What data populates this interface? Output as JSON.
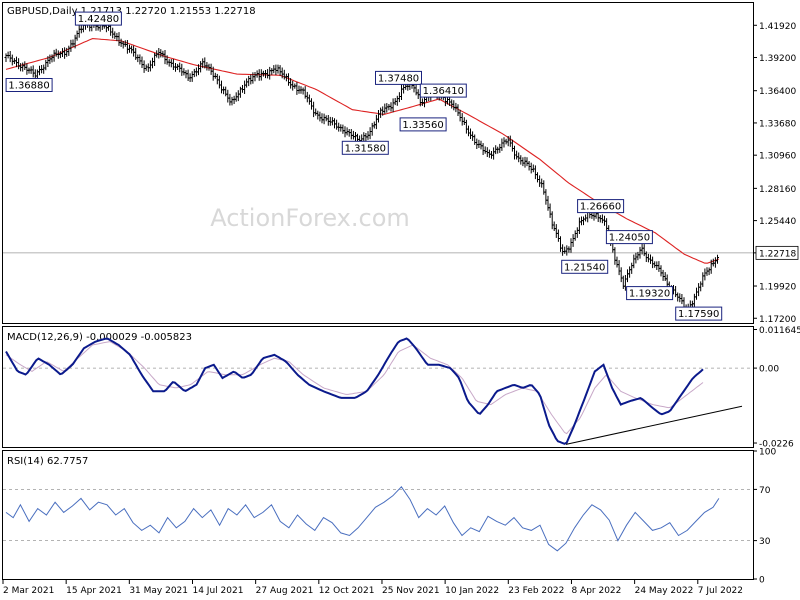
{
  "header": {
    "symbol_line": "GBPUSD,Daily  1.21713 1.22720 1.21553 1.22718"
  },
  "watermark": "ActionForex.com",
  "colors": {
    "candle": "#000000",
    "ma": "#dd2222",
    "macd": "#0b1a8c",
    "signal": "#c8a8c8",
    "rsi": "#4a6fbf",
    "guide": "#9a9a9a",
    "text": "#000000",
    "label_border": "#1a237e",
    "watermark": "#d8d8d8"
  },
  "chart_data": [
    {
      "type": "line",
      "name": "price",
      "title": "GBPUSD,Daily",
      "ylim": [
        1.168,
        1.438
      ],
      "y_ticks": [
        "1.41920",
        "1.39200",
        "1.36400",
        "1.33680",
        "1.30960",
        "1.28160",
        "1.25440",
        "1.22718",
        "1.19920",
        "1.17200"
      ],
      "current_price": "1.22718",
      "x_ticks": [
        "2 Mar 2021",
        "15 Apr 2021",
        "31 May 2021",
        "14 Jul 2021",
        "27 Aug 2021",
        "12 Oct 2021",
        "25 Nov 2021",
        "10 Jan 2022",
        "23 Feb 2022",
        "8 Apr 2022",
        "24 May 2022",
        "7 Jul 2022"
      ],
      "x_range_days": [
        0,
        510
      ],
      "close_keypoints": [
        [
          0,
          1.392
        ],
        [
          12,
          1.385
        ],
        [
          20,
          1.376
        ],
        [
          30,
          1.392
        ],
        [
          40,
          1.395
        ],
        [
          52,
          1.416
        ],
        [
          60,
          1.421
        ],
        [
          68,
          1.418
        ],
        [
          78,
          1.408
        ],
        [
          88,
          1.395
        ],
        [
          98,
          1.383
        ],
        [
          106,
          1.396
        ],
        [
          114,
          1.388
        ],
        [
          126,
          1.375
        ],
        [
          136,
          1.387
        ],
        [
          146,
          1.375
        ],
        [
          156,
          1.352
        ],
        [
          166,
          1.372
        ],
        [
          176,
          1.377
        ],
        [
          186,
          1.383
        ],
        [
          196,
          1.372
        ],
        [
          206,
          1.362
        ],
        [
          214,
          1.346
        ],
        [
          224,
          1.337
        ],
        [
          234,
          1.332
        ],
        [
          244,
          1.321
        ],
        [
          252,
          1.33
        ],
        [
          260,
          1.346
        ],
        [
          270,
          1.356
        ],
        [
          276,
          1.366
        ],
        [
          282,
          1.37
        ],
        [
          288,
          1.354
        ],
        [
          296,
          1.362
        ],
        [
          302,
          1.361
        ],
        [
          310,
          1.35
        ],
        [
          318,
          1.336
        ],
        [
          326,
          1.318
        ],
        [
          334,
          1.311
        ],
        [
          342,
          1.316
        ],
        [
          348,
          1.322
        ],
        [
          354,
          1.309
        ],
        [
          360,
          1.302
        ],
        [
          366,
          1.295
        ],
        [
          372,
          1.284
        ],
        [
          378,
          1.252
        ],
        [
          386,
          1.228
        ],
        [
          392,
          1.236
        ],
        [
          398,
          1.252
        ],
        [
          404,
          1.262
        ],
        [
          410,
          1.258
        ],
        [
          416,
          1.249
        ],
        [
          422,
          1.224
        ],
        [
          428,
          1.199
        ],
        [
          434,
          1.218
        ],
        [
          440,
          1.233
        ],
        [
          446,
          1.219
        ],
        [
          454,
          1.212
        ],
        [
          460,
          1.198
        ],
        [
          466,
          1.188
        ],
        [
          472,
          1.18
        ],
        [
          478,
          1.192
        ],
        [
          484,
          1.208
        ],
        [
          490,
          1.22
        ],
        [
          494,
          1.227
        ]
      ],
      "ma_keypoints": [
        [
          0,
          1.382
        ],
        [
          30,
          1.392
        ],
        [
          60,
          1.408
        ],
        [
          80,
          1.406
        ],
        [
          110,
          1.393
        ],
        [
          130,
          1.386
        ],
        [
          160,
          1.378
        ],
        [
          190,
          1.377
        ],
        [
          215,
          1.365
        ],
        [
          240,
          1.348
        ],
        [
          262,
          1.344
        ],
        [
          280,
          1.35
        ],
        [
          300,
          1.357
        ],
        [
          320,
          1.344
        ],
        [
          345,
          1.327
        ],
        [
          370,
          1.306
        ],
        [
          390,
          1.286
        ],
        [
          410,
          1.27
        ],
        [
          430,
          1.256
        ],
        [
          450,
          1.244
        ],
        [
          470,
          1.226
        ],
        [
          485,
          1.218
        ],
        [
          494,
          1.222
        ]
      ],
      "annotations": [
        {
          "text": "1.42480",
          "day": 64,
          "price": 1.4248
        },
        {
          "text": "1.36880",
          "day": 16,
          "price": 1.3688
        },
        {
          "text": "1.37480",
          "day": 272,
          "price": 1.3748
        },
        {
          "text": "1.36410",
          "day": 303,
          "price": 1.3641
        },
        {
          "text": "1.33560",
          "day": 289,
          "price": 1.3356
        },
        {
          "text": "1.31580",
          "day": 249,
          "price": 1.3158
        },
        {
          "text": "1.26660",
          "day": 412,
          "price": 1.2666
        },
        {
          "text": "1.24050",
          "day": 432,
          "price": 1.2405
        },
        {
          "text": "1.21540",
          "day": 401,
          "price": 1.2154
        },
        {
          "text": "1.19320",
          "day": 446,
          "price": 1.1932
        },
        {
          "text": "1.17590",
          "day": 480,
          "price": 1.1759
        }
      ]
    },
    {
      "type": "line",
      "name": "macd",
      "title": "MACD(12,26,9) -0.000029 -0.005823",
      "ylim": [
        -0.0238,
        0.0124
      ],
      "y_ticks": [
        "0.011645",
        "0.00",
        "-0.0226"
      ],
      "macd_keypoints": [
        [
          0,
          0.005
        ],
        [
          8,
          -0.001
        ],
        [
          14,
          -0.002
        ],
        [
          22,
          0.003
        ],
        [
          30,
          0.001
        ],
        [
          38,
          -0.002
        ],
        [
          46,
          0.001
        ],
        [
          54,
          0.006
        ],
        [
          62,
          0.008
        ],
        [
          70,
          0.009
        ],
        [
          78,
          0.007
        ],
        [
          86,
          0.004
        ],
        [
          94,
          -0.002
        ],
        [
          102,
          -0.007
        ],
        [
          110,
          -0.007
        ],
        [
          116,
          -0.004
        ],
        [
          124,
          -0.007
        ],
        [
          132,
          -0.005
        ],
        [
          138,
          0.0
        ],
        [
          144,
          0.001
        ],
        [
          150,
          -0.003
        ],
        [
          158,
          -0.001
        ],
        [
          164,
          -0.003
        ],
        [
          170,
          -0.002
        ],
        [
          178,
          0.003
        ],
        [
          186,
          0.004
        ],
        [
          194,
          0.002
        ],
        [
          202,
          -0.002
        ],
        [
          210,
          -0.005
        ],
        [
          220,
          -0.007
        ],
        [
          232,
          -0.009
        ],
        [
          242,
          -0.009
        ],
        [
          250,
          -0.007
        ],
        [
          258,
          -0.002
        ],
        [
          266,
          0.004
        ],
        [
          272,
          0.008
        ],
        [
          278,
          0.009
        ],
        [
          284,
          0.006
        ],
        [
          292,
          0.001
        ],
        [
          300,
          0.001
        ],
        [
          308,
          0.0
        ],
        [
          314,
          -0.003
        ],
        [
          320,
          -0.01
        ],
        [
          328,
          -0.014
        ],
        [
          334,
          -0.011
        ],
        [
          340,
          -0.007
        ],
        [
          346,
          -0.006
        ],
        [
          352,
          -0.005
        ],
        [
          358,
          -0.006
        ],
        [
          364,
          -0.005
        ],
        [
          370,
          -0.008
        ],
        [
          376,
          -0.017
        ],
        [
          382,
          -0.022
        ],
        [
          388,
          -0.023
        ],
        [
          394,
          -0.017
        ],
        [
          402,
          -0.008
        ],
        [
          408,
          -0.001
        ],
        [
          414,
          0.001
        ],
        [
          420,
          -0.006
        ],
        [
          426,
          -0.011
        ],
        [
          432,
          -0.01
        ],
        [
          440,
          -0.009
        ],
        [
          448,
          -0.012
        ],
        [
          454,
          -0.014
        ],
        [
          460,
          -0.013
        ],
        [
          468,
          -0.008
        ],
        [
          476,
          -0.003
        ],
        [
          484,
          0.0
        ]
      ],
      "signal_keypoints": [
        [
          0,
          0.004
        ],
        [
          10,
          0.001
        ],
        [
          18,
          -0.001
        ],
        [
          28,
          0.002
        ],
        [
          40,
          -0.001
        ],
        [
          50,
          0.003
        ],
        [
          60,
          0.007
        ],
        [
          72,
          0.008
        ],
        [
          84,
          0.005
        ],
        [
          96,
          0.0
        ],
        [
          106,
          -0.005
        ],
        [
          118,
          -0.006
        ],
        [
          128,
          -0.005
        ],
        [
          140,
          -0.001
        ],
        [
          152,
          -0.002
        ],
        [
          164,
          -0.002
        ],
        [
          176,
          0.001
        ],
        [
          186,
          0.003
        ],
        [
          196,
          0.002
        ],
        [
          206,
          -0.002
        ],
        [
          220,
          -0.006
        ],
        [
          236,
          -0.008
        ],
        [
          250,
          -0.007
        ],
        [
          262,
          -0.002
        ],
        [
          272,
          0.005
        ],
        [
          282,
          0.007
        ],
        [
          294,
          0.003
        ],
        [
          306,
          0.001
        ],
        [
          316,
          -0.003
        ],
        [
          326,
          -0.01
        ],
        [
          336,
          -0.011
        ],
        [
          346,
          -0.008
        ],
        [
          358,
          -0.006
        ],
        [
          368,
          -0.007
        ],
        [
          378,
          -0.014
        ],
        [
          388,
          -0.02
        ],
        [
          398,
          -0.015
        ],
        [
          408,
          -0.006
        ],
        [
          416,
          -0.002
        ],
        [
          426,
          -0.007
        ],
        [
          436,
          -0.009
        ],
        [
          448,
          -0.011
        ],
        [
          460,
          -0.012
        ],
        [
          472,
          -0.008
        ],
        [
          484,
          -0.004
        ]
      ],
      "trendline": [
        [
          388,
          -0.023
        ],
        [
          510,
          -0.0115
        ]
      ]
    },
    {
      "type": "line",
      "name": "rsi",
      "title": "RSI(14) 62.7757",
      "ylim": [
        0,
        100
      ],
      "y_ticks": [
        "100",
        "70",
        "30",
        "0"
      ],
      "levels": [
        70,
        30
      ],
      "rsi_keypoints": [
        [
          0,
          52
        ],
        [
          5,
          48
        ],
        [
          10,
          58
        ],
        [
          16,
          45
        ],
        [
          22,
          55
        ],
        [
          28,
          50
        ],
        [
          34,
          60
        ],
        [
          40,
          52
        ],
        [
          46,
          57
        ],
        [
          52,
          63
        ],
        [
          58,
          54
        ],
        [
          64,
          60
        ],
        [
          70,
          58
        ],
        [
          76,
          50
        ],
        [
          82,
          55
        ],
        [
          88,
          44
        ],
        [
          94,
          38
        ],
        [
          100,
          42
        ],
        [
          106,
          36
        ],
        [
          112,
          48
        ],
        [
          118,
          40
        ],
        [
          124,
          45
        ],
        [
          130,
          55
        ],
        [
          136,
          48
        ],
        [
          142,
          54
        ],
        [
          148,
          42
        ],
        [
          154,
          55
        ],
        [
          160,
          50
        ],
        [
          166,
          58
        ],
        [
          172,
          48
        ],
        [
          178,
          52
        ],
        [
          184,
          58
        ],
        [
          190,
          45
        ],
        [
          196,
          40
        ],
        [
          202,
          50
        ],
        [
          208,
          43
        ],
        [
          214,
          38
        ],
        [
          220,
          48
        ],
        [
          226,
          44
        ],
        [
          232,
          36
        ],
        [
          238,
          34
        ],
        [
          244,
          40
        ],
        [
          250,
          48
        ],
        [
          256,
          56
        ],
        [
          262,
          60
        ],
        [
          268,
          65
        ],
        [
          274,
          72
        ],
        [
          280,
          62
        ],
        [
          286,
          48
        ],
        [
          292,
          55
        ],
        [
          298,
          50
        ],
        [
          304,
          57
        ],
        [
          310,
          44
        ],
        [
          316,
          34
        ],
        [
          322,
          40
        ],
        [
          328,
          37
        ],
        [
          334,
          49
        ],
        [
          340,
          45
        ],
        [
          346,
          42
        ],
        [
          352,
          48
        ],
        [
          358,
          40
        ],
        [
          364,
          38
        ],
        [
          370,
          42
        ],
        [
          376,
          27
        ],
        [
          382,
          22
        ],
        [
          388,
          28
        ],
        [
          394,
          40
        ],
        [
          400,
          50
        ],
        [
          406,
          58
        ],
        [
          412,
          54
        ],
        [
          418,
          46
        ],
        [
          424,
          30
        ],
        [
          430,
          42
        ],
        [
          436,
          52
        ],
        [
          442,
          45
        ],
        [
          448,
          38
        ],
        [
          454,
          40
        ],
        [
          460,
          44
        ],
        [
          466,
          34
        ],
        [
          472,
          38
        ],
        [
          478,
          45
        ],
        [
          484,
          52
        ],
        [
          490,
          56
        ],
        [
          494,
          63
        ]
      ]
    }
  ]
}
